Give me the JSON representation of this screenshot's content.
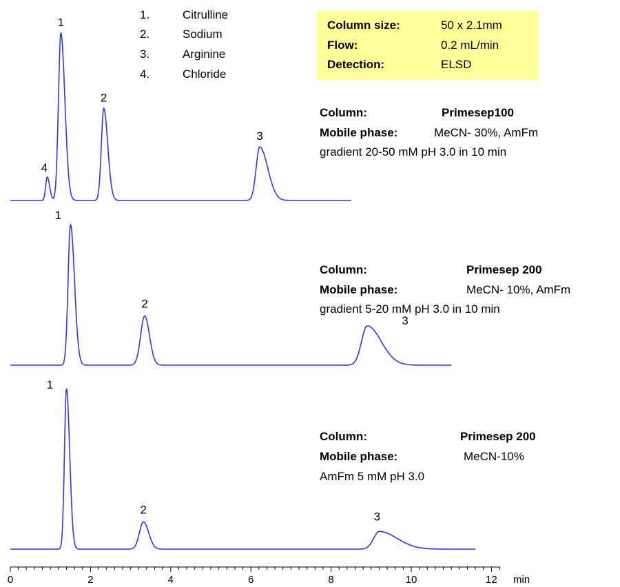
{
  "legend": {
    "items": [
      {
        "num": "1.",
        "name": "Citrulline"
      },
      {
        "num": "2.",
        "name": "Sodium"
      },
      {
        "num": "3.",
        "name": "Arginine"
      },
      {
        "num": "4.",
        "name": "Chloride"
      }
    ]
  },
  "conditions": {
    "background": "#ffff99",
    "rows": [
      {
        "label": "Column size:",
        "value": "50 x 2.1mm"
      },
      {
        "label": "Flow:",
        "value": "0.2 mL/min"
      },
      {
        "label": "Detection:",
        "value": "ELSD"
      }
    ]
  },
  "chart_data": {
    "type": "line",
    "trace_color": "#3333ee",
    "x_axis": {
      "unit": "min",
      "range": [
        0,
        12.5
      ],
      "ticks": [
        0,
        2,
        4,
        6,
        8,
        10,
        12
      ],
      "tick_labels": [
        "0",
        "2",
        "4",
        "6",
        "8",
        "10",
        "12"
      ]
    },
    "panels": [
      {
        "column_label": "Column:",
        "column_value": "Primesep100",
        "mobile_label": "Mobile phase:",
        "mobile_value": "MeCN- 30%, AmFm",
        "extra": "gradient 20-50 mM  pH 3.0 in 10 min",
        "x_end": 8.5,
        "peaks": [
          {
            "label": "4",
            "rt": 0.92,
            "height": 0.14,
            "width_left": 0.04,
            "width_right": 0.06
          },
          {
            "label": "1",
            "rt": 1.26,
            "height": 1.0,
            "width_left": 0.06,
            "width_right": 0.1
          },
          {
            "label": "2",
            "rt": 2.33,
            "height": 0.55,
            "width_left": 0.06,
            "width_right": 0.1
          },
          {
            "label": "3",
            "rt": 6.22,
            "height": 0.32,
            "width_left": 0.09,
            "width_right": 0.2
          }
        ]
      },
      {
        "column_label": "Column:",
        "column_value": "Primesep 200",
        "mobile_label": "Mobile phase:",
        "mobile_value": "MeCN- 10%, AmFm",
        "extra": "gradient 5-20 mM  pH 3.0 in 10 min",
        "x_end": 11.0,
        "peaks": [
          {
            "label": "1",
            "rt": 1.5,
            "height": 1.0,
            "width_left": 0.06,
            "width_right": 0.1
          },
          {
            "label": "2",
            "rt": 3.35,
            "height": 0.35,
            "width_left": 0.1,
            "width_right": 0.12
          },
          {
            "label": "3",
            "rt": 8.9,
            "height": 0.28,
            "width_left": 0.14,
            "width_right": 0.35
          }
        ]
      },
      {
        "column_label": "Column:",
        "column_value": "Primesep 200",
        "mobile_label": "Mobile phase:",
        "mobile_value": "MeCN-10%",
        "extra": "AmFm 5 mM  pH 3.0",
        "x_end": 11.6,
        "peaks": [
          {
            "label": "1",
            "rt": 1.4,
            "height": 1.0,
            "width_left": 0.05,
            "width_right": 0.08
          },
          {
            "label": "2",
            "rt": 3.32,
            "height": 0.17,
            "width_left": 0.1,
            "width_right": 0.13
          },
          {
            "label": "3",
            "rt": 9.2,
            "height": 0.11,
            "width_left": 0.14,
            "width_right": 0.45
          }
        ]
      }
    ]
  }
}
